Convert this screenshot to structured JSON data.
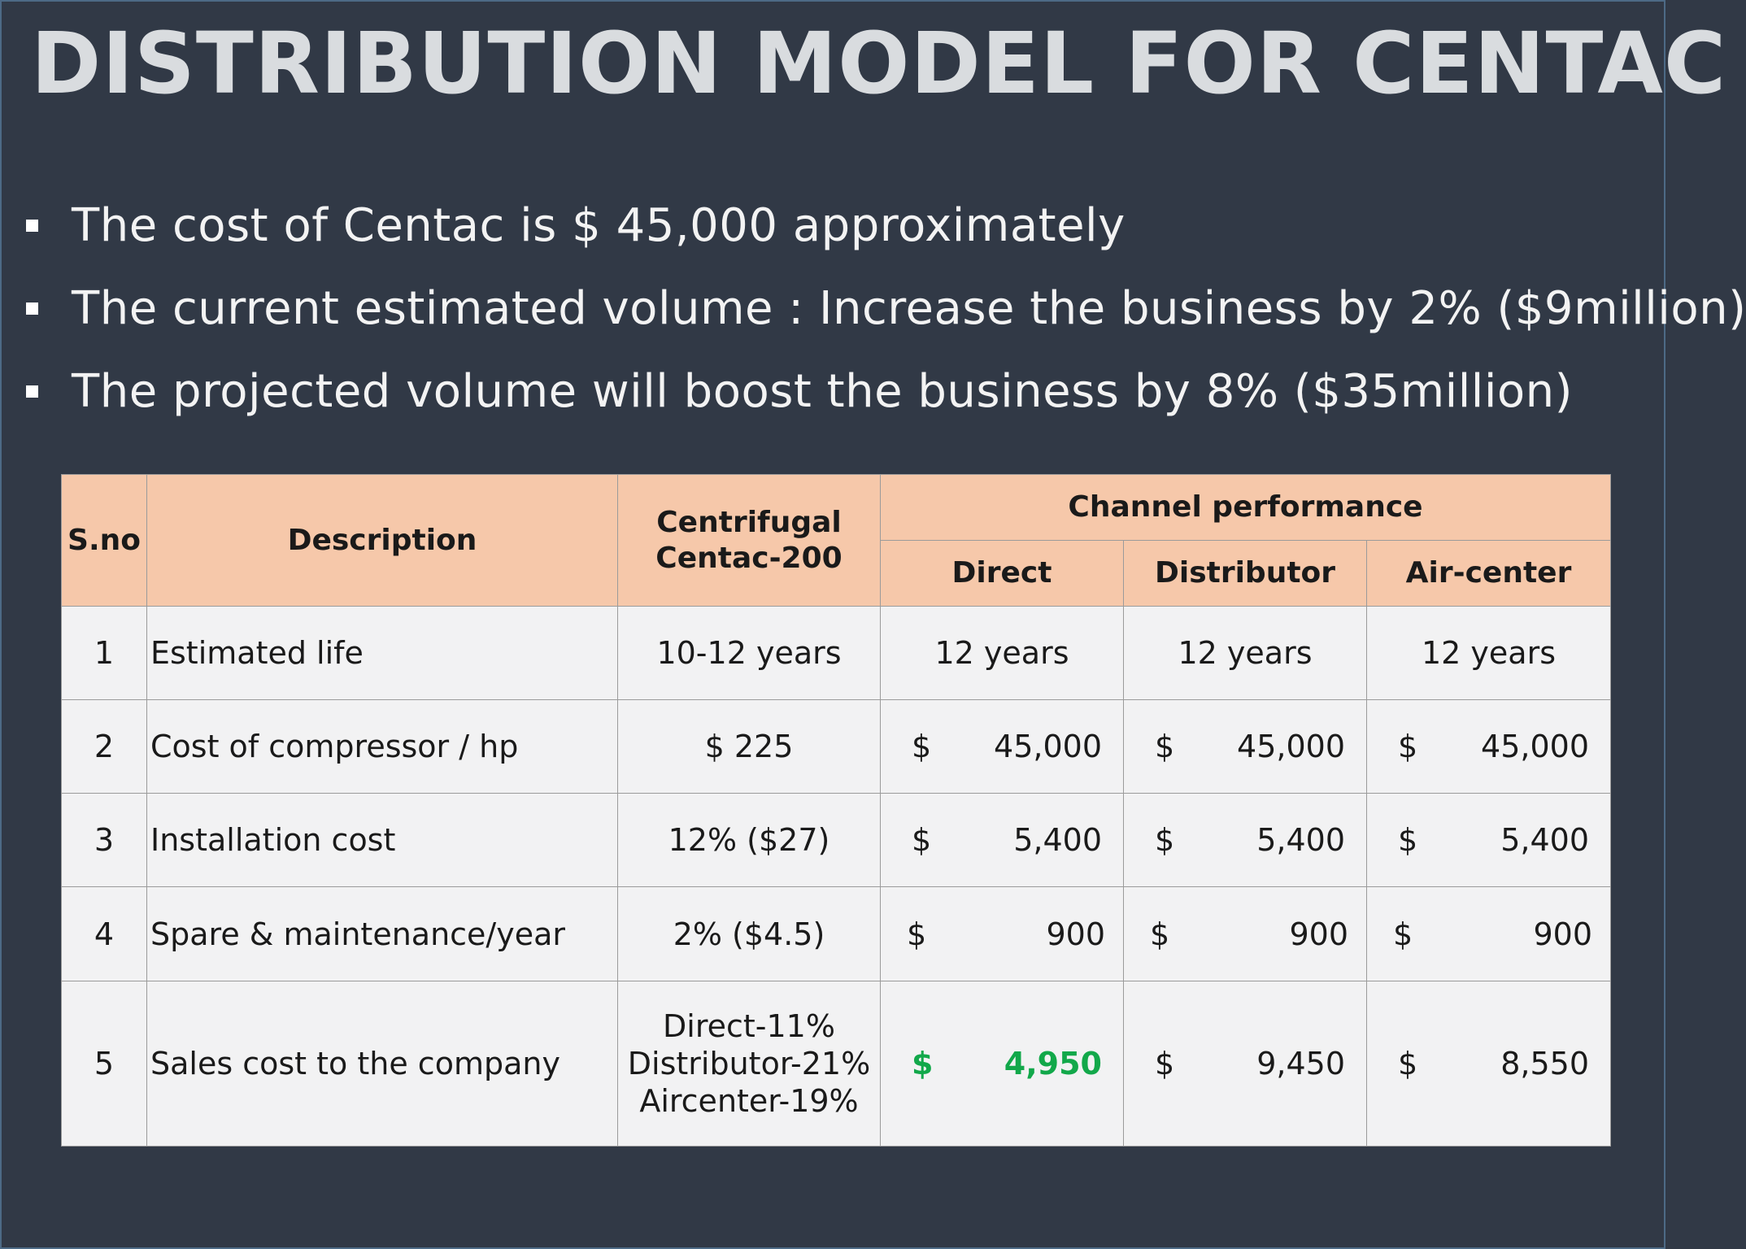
{
  "title": "DISTRIBUTION MODEL FOR CENTAC",
  "bullets": [
    "The cost of Centac is $ 45,000 approximately",
    "The current estimated volume : Increase the business by 2% ($9million)",
    "The projected volume will boost the business by 8% ($35million)"
  ],
  "table": {
    "headers": {
      "sno": "S.no",
      "description": "Description",
      "centrifugal_line1": "Centrifugal",
      "centrifugal_line2": "Centac-200",
      "channel_performance": "Channel performance",
      "direct": "Direct",
      "distributor": "Distributor",
      "aircenter": "Air-center"
    },
    "rows": [
      {
        "sno": "1",
        "description": "Estimated life",
        "centac": "10-12 years",
        "direct": "12 years",
        "distributor": "12 years",
        "aircenter": "12 years"
      },
      {
        "sno": "2",
        "description": "Cost of compressor / hp",
        "centac": "$ 225",
        "currency": "$",
        "direct": "45,000",
        "distributor": "45,000",
        "aircenter": "45,000"
      },
      {
        "sno": "3",
        "description": "Installation cost",
        "centac": "12% ($27)",
        "currency": "$",
        "direct": "5,400",
        "distributor": "5,400",
        "aircenter": "5,400"
      },
      {
        "sno": "4",
        "description": "Spare & maintenance/year",
        "centac": "2% ($4.5)",
        "currency": "$",
        "direct": "900",
        "distributor": "900",
        "aircenter": "900"
      },
      {
        "sno": "5",
        "description": "Sales cost to the company",
        "centac_lines": [
          "Direct-11%",
          "Distributor-21%",
          "Aircenter-19%"
        ],
        "currency": "$",
        "direct": "4,950",
        "distributor": "9,450",
        "aircenter": "8,550"
      }
    ]
  },
  "colors": {
    "background": "#313946",
    "title": "#d9dcdf",
    "header_fill": "#f6c8aa",
    "cell_fill": "#f2f2f3",
    "highlight_green": "#12a84a"
  }
}
